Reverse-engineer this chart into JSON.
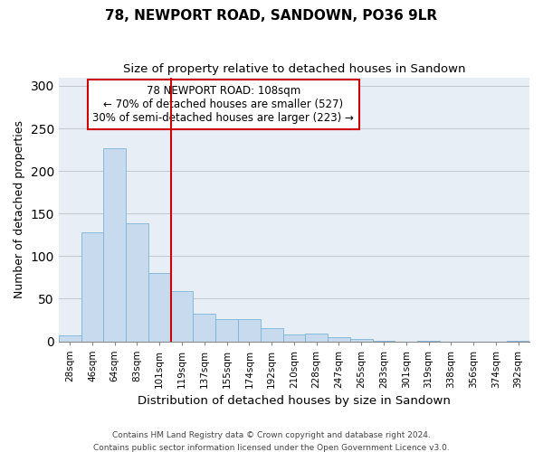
{
  "title": "78, NEWPORT ROAD, SANDOWN, PO36 9LR",
  "subtitle": "Size of property relative to detached houses in Sandown",
  "xlabel": "Distribution of detached houses by size in Sandown",
  "ylabel": "Number of detached properties",
  "bar_labels": [
    "28sqm",
    "46sqm",
    "64sqm",
    "83sqm",
    "101sqm",
    "119sqm",
    "137sqm",
    "155sqm",
    "174sqm",
    "192sqm",
    "210sqm",
    "228sqm",
    "247sqm",
    "265sqm",
    "283sqm",
    "301sqm",
    "319sqm",
    "338sqm",
    "356sqm",
    "374sqm",
    "392sqm"
  ],
  "bar_heights": [
    7,
    128,
    227,
    139,
    80,
    59,
    32,
    26,
    26,
    15,
    8,
    9,
    5,
    3,
    1,
    0,
    1,
    0,
    0,
    0,
    1
  ],
  "bar_color": "#c8daed",
  "bar_edge_color": "#7ab4d8",
  "vline_color": "#cc0000",
  "annotation_title": "78 NEWPORT ROAD: 108sqm",
  "annotation_line1": "← 70% of detached houses are smaller (527)",
  "annotation_line2": "30% of semi-detached houses are larger (223) →",
  "annotation_box_edge": "#cc0000",
  "ylim": [
    0,
    310
  ],
  "yticks": [
    0,
    50,
    100,
    150,
    200,
    250,
    300
  ],
  "footer1": "Contains HM Land Registry data © Crown copyright and database right 2024.",
  "footer2": "Contains public sector information licensed under the Open Government Licence v3.0.",
  "plot_bg_color": "#e8eef5",
  "fig_bg_color": "#ffffff"
}
